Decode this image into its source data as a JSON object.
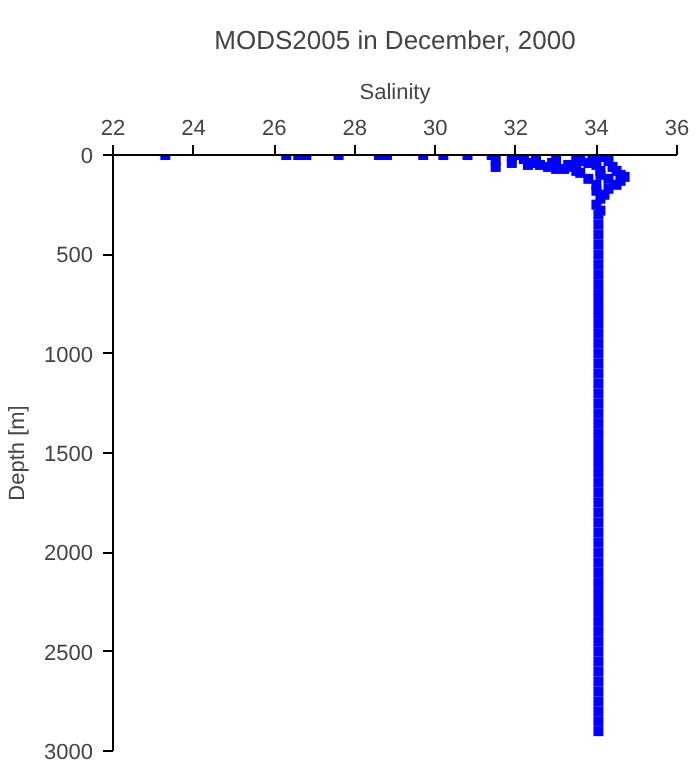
{
  "chart_data": {
    "type": "scatter",
    "title": "MODS2005 in December, 2000",
    "xlabel": "Salinity",
    "ylabel": "Depth [m]",
    "xlim": [
      22,
      36
    ],
    "xticks": [
      22,
      24,
      26,
      28,
      30,
      32,
      34,
      36
    ],
    "ylim": [
      3000,
      0
    ],
    "yticks": [
      0,
      500,
      1000,
      1500,
      2000,
      2500,
      3000
    ],
    "grid": false,
    "marker": "square",
    "series": [
      {
        "color": "#0000ff",
        "x": [
          23.3,
          26.3,
          26.6,
          26.8,
          27.6,
          28.6,
          28.8,
          29.7,
          30.2,
          30.8,
          31.4,
          31.5,
          31.5,
          31.9,
          31.9,
          32.0,
          32.2,
          32.4,
          32.6,
          32.8,
          33.0,
          33.2,
          33.4,
          33.5,
          33.6,
          33.8,
          33.9,
          34.0,
          34.2,
          34.3,
          34.4,
          34.5,
          34.6,
          34.7,
          34.6,
          34.5,
          34.3,
          34.2,
          34.0,
          34.1,
          32.5,
          33.0,
          33.5,
          34.1,
          34.0,
          33.8,
          33.6,
          32.3,
          32.9,
          33.3,
          34.0,
          34.1,
          34.3,
          34.0,
          34.1,
          34.05,
          34.05,
          34.05,
          34.05,
          34.05,
          34.05,
          34.05,
          34.05,
          34.05,
          34.05,
          34.05,
          34.05,
          34.05,
          34.05,
          34.05,
          34.05,
          34.05,
          34.05,
          34.05,
          34.05,
          34.05,
          34.05,
          34.05,
          34.05,
          34.05,
          34.05,
          34.05,
          34.05,
          34.05,
          34.05,
          34.05,
          34.05,
          34.05,
          34.05,
          34.05,
          34.05,
          34.05,
          34.05,
          34.05,
          34.05,
          34.05,
          34.05,
          34.05,
          34.05,
          34.05,
          34.05,
          34.05,
          34.05,
          34.05,
          34.05,
          34.05,
          34.05,
          34.05
        ],
        "values": [
          0,
          0,
          0,
          0,
          0,
          0,
          0,
          0,
          0,
          0,
          0,
          30,
          60,
          10,
          40,
          0,
          20,
          40,
          50,
          60,
          70,
          70,
          60,
          80,
          30,
          40,
          10,
          0,
          10,
          30,
          60,
          80,
          100,
          110,
          130,
          150,
          170,
          200,
          250,
          220,
          10,
          20,
          20,
          100,
          150,
          120,
          90,
          50,
          40,
          50,
          50,
          80,
          120,
          180,
          280,
          300,
          350,
          400,
          450,
          500,
          550,
          600,
          650,
          700,
          750,
          800,
          850,
          900,
          950,
          1000,
          1050,
          1100,
          1150,
          1200,
          1250,
          1300,
          1350,
          1400,
          1450,
          1500,
          1550,
          1600,
          1650,
          1700,
          1750,
          1800,
          1850,
          1900,
          1950,
          2000,
          2050,
          2100,
          2150,
          2200,
          2250,
          2300,
          2350,
          2400,
          2450,
          2500,
          2550,
          2600,
          2650,
          2700,
          2750,
          2800,
          2850,
          2900
        ]
      }
    ]
  }
}
